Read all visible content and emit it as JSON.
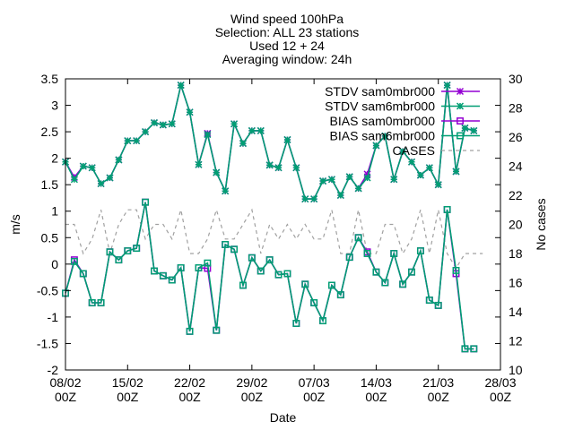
{
  "chart_data": {
    "type": "line",
    "title_lines": [
      "Wind speed 100hPa",
      "Selection: ALL      23 stations",
      "Used 12 + 24",
      "Averaging window: 24h"
    ],
    "xlabel": "Date",
    "ylabel": "m/s",
    "y2label": "No cases",
    "xlim": [
      "2024-02-08 00Z",
      "2024-03-28 00Z"
    ],
    "ylim": [
      -2,
      3.5
    ],
    "y2lim": [
      10,
      30
    ],
    "x_ticks": [
      "08/02\n00Z",
      "15/02\n00Z",
      "22/02\n00Z",
      "29/02\n00Z",
      "07/03\n00Z",
      "14/03\n00Z",
      "21/03\n00Z",
      "28/03\n00Z"
    ],
    "y_ticks": [
      "-2",
      "-1.5",
      "-1",
      "-0.5",
      "0",
      "0.5",
      "1",
      "1.5",
      "2",
      "2.5",
      "3",
      "3.5"
    ],
    "y2_ticks": [
      "10",
      "12",
      "14",
      "16",
      "18",
      "20",
      "22",
      "24",
      "26",
      "28",
      "30"
    ],
    "grid": false,
    "legend_position": "top-right",
    "x_dates": [
      "2024-02-08",
      "2024-02-09",
      "2024-02-10",
      "2024-02-11",
      "2024-02-12",
      "2024-02-13",
      "2024-02-14",
      "2024-02-15",
      "2024-02-16",
      "2024-02-17",
      "2024-02-18",
      "2024-02-19",
      "2024-02-20",
      "2024-02-21",
      "2024-02-22",
      "2024-02-23",
      "2024-02-24",
      "2024-02-25",
      "2024-02-26",
      "2024-02-27",
      "2024-02-28",
      "2024-02-29",
      "2024-03-01",
      "2024-03-02",
      "2024-03-03",
      "2024-03-04",
      "2024-03-05",
      "2024-03-06",
      "2024-03-07",
      "2024-03-08",
      "2024-03-09",
      "2024-03-10",
      "2024-03-11",
      "2024-03-12",
      "2024-03-13",
      "2024-03-14",
      "2024-03-15",
      "2024-03-16",
      "2024-03-17",
      "2024-03-18",
      "2024-03-19",
      "2024-03-20",
      "2024-03-21",
      "2024-03-22",
      "2024-03-23",
      "2024-03-24",
      "2024-03-25",
      "2024-03-26"
    ],
    "series": [
      {
        "name": "STDV sam0mbr000",
        "axis": "y1",
        "color": "#9400d3",
        "marker": "asterisk",
        "values": [
          1.93,
          1.64,
          1.85,
          1.82,
          1.52,
          1.63,
          1.97,
          2.33,
          2.33,
          2.5,
          2.67,
          2.63,
          2.65,
          3.38,
          2.87,
          1.88,
          2.47,
          1.73,
          1.38,
          2.65,
          2.28,
          2.52,
          2.52,
          1.87,
          1.82,
          2.35,
          1.82,
          1.23,
          1.23,
          1.57,
          1.6,
          1.3,
          1.65,
          1.43,
          1.7,
          2.24,
          2.42,
          1.6,
          2.13,
          1.93,
          1.68,
          1.82,
          1.5,
          3.38,
          1.75,
          2.57,
          2.52,
          null
        ]
      },
      {
        "name": "STDV sam6mbr000",
        "axis": "y1",
        "color": "#009e73",
        "marker": "asterisk",
        "values": [
          1.93,
          1.6,
          1.85,
          1.82,
          1.52,
          1.63,
          1.97,
          2.33,
          2.33,
          2.5,
          2.67,
          2.63,
          2.65,
          3.38,
          2.87,
          1.88,
          2.45,
          1.73,
          1.38,
          2.65,
          2.28,
          2.52,
          2.52,
          1.87,
          1.82,
          2.35,
          1.82,
          1.23,
          1.23,
          1.57,
          1.6,
          1.3,
          1.65,
          1.43,
          1.63,
          2.24,
          2.42,
          1.6,
          2.13,
          1.93,
          1.68,
          1.82,
          1.5,
          3.38,
          1.75,
          2.57,
          2.52,
          null
        ]
      },
      {
        "name": "BIAS sam0mbr000",
        "axis": "y1",
        "color": "#9400d3",
        "marker": "open-square",
        "values": [
          -0.55,
          0.08,
          -0.18,
          -0.73,
          -0.73,
          0.23,
          0.08,
          0.25,
          0.3,
          1.17,
          -0.13,
          -0.22,
          -0.3,
          -0.07,
          -1.27,
          -0.07,
          -0.08,
          -1.25,
          0.37,
          0.28,
          -0.4,
          0.12,
          -0.13,
          0.08,
          -0.2,
          -0.18,
          -1.12,
          -0.38,
          -0.73,
          -1.07,
          -0.4,
          -0.58,
          0.13,
          0.5,
          0.23,
          -0.15,
          -0.35,
          0.2,
          -0.38,
          -0.15,
          0.25,
          -0.68,
          -0.78,
          1.03,
          -0.18,
          -1.6,
          -1.6,
          null
        ]
      },
      {
        "name": "BIAS sam6mbr000",
        "axis": "y1",
        "color": "#009e73",
        "marker": "open-square",
        "values": [
          -0.55,
          0.05,
          -0.18,
          -0.73,
          -0.73,
          0.23,
          0.08,
          0.25,
          0.3,
          1.17,
          -0.13,
          -0.22,
          -0.3,
          -0.07,
          -1.27,
          -0.07,
          0.02,
          -1.25,
          0.37,
          0.28,
          -0.4,
          0.12,
          -0.13,
          0.08,
          -0.2,
          -0.18,
          -1.12,
          -0.38,
          -0.73,
          -1.07,
          -0.4,
          -0.58,
          0.13,
          0.5,
          0.2,
          -0.15,
          -0.35,
          0.2,
          -0.38,
          -0.15,
          0.25,
          -0.68,
          -0.78,
          1.03,
          -0.12,
          -1.6,
          -1.6,
          null
        ]
      },
      {
        "name": "CASES",
        "axis": "y2",
        "color": "#a0a0a0",
        "marker": "none",
        "dash": "dashed",
        "values": [
          20,
          20,
          18,
          19,
          21,
          18,
          20,
          21,
          21,
          19,
          20,
          20,
          19,
          21,
          18,
          18,
          19,
          21,
          19,
          19,
          20,
          21,
          18,
          20,
          19,
          20,
          19,
          20,
          19,
          19,
          21,
          18,
          18,
          21,
          18,
          18,
          20,
          20,
          18,
          19,
          21,
          18,
          21,
          18,
          17,
          18,
          18,
          18
        ]
      }
    ]
  }
}
